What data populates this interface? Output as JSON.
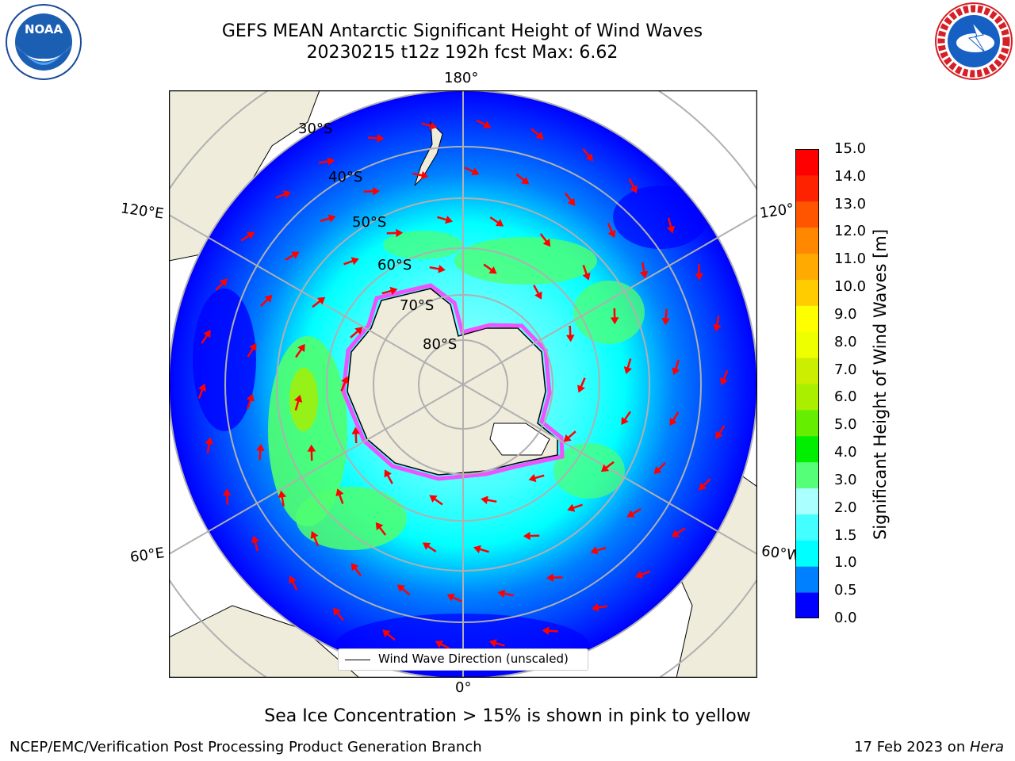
{
  "header": {
    "title_line1": "GEFS MEAN Antarctic Significant Height of Wind Waves",
    "title_line2": "20230215 t12z 192h fcst   Max: 6.62"
  },
  "logos": {
    "left": {
      "icon": "noaa-logo-icon",
      "text": "NOAA"
    },
    "right": {
      "icon": "nws-logo-icon",
      "text": "NATIONAL WEATHER SERVICE"
    }
  },
  "map": {
    "projection": "south-polar-stereographic",
    "longitude_labels": {
      "top": "180°",
      "bottom": "0°",
      "upper_left": "120°E",
      "lower_left": "60°E",
      "upper_right": "120°",
      "lower_right": "60°W"
    },
    "latitude_labels": [
      "30°S",
      "40°S",
      "50°S",
      "60°S",
      "70°S",
      "80°S"
    ],
    "colors": {
      "ocean_low": "#0000ff",
      "ocean_mid": "#0080ff",
      "ocean_cyan": "#00ffff",
      "ocean_lightcyan": "#aaffff",
      "ocean_green": "#50ff70",
      "land": "#efecdc",
      "arrow": "#ff0000",
      "sea_ice": "#ff40ff",
      "gridline": "#b0b0b0"
    }
  },
  "colorbar": {
    "ticks": [
      "15.0",
      "14.0",
      "13.0",
      "12.0",
      "11.0",
      "10.0",
      "9.0",
      "8.0",
      "7.0",
      "6.0",
      "5.0",
      "4.0",
      "3.0",
      "2.0",
      "1.5",
      "1.0",
      "0.5",
      "0.0"
    ],
    "colors_bottom_to_top": [
      "#0000ff",
      "#0080ff",
      "#00ffff",
      "#44ffff",
      "#aaffff",
      "#55ff77",
      "#00ee00",
      "#66ee00",
      "#aaee00",
      "#ccee00",
      "#eeff00",
      "#ffff00",
      "#ffcc00",
      "#ffaa00",
      "#ff8800",
      "#ff5500",
      "#ff2200",
      "#ff0000"
    ],
    "title": "Significant Height of Wind Waves [m]"
  },
  "legend": {
    "label": "Wind Wave Direction (unscaled)"
  },
  "footer": {
    "note": "Sea Ice Concentration > 15% is shown in pink to yellow",
    "left": "NCEP/EMC/Verification Post Processing Product Generation Branch",
    "right_prefix": "17 Feb 2023 on ",
    "right_host": "Hera"
  }
}
